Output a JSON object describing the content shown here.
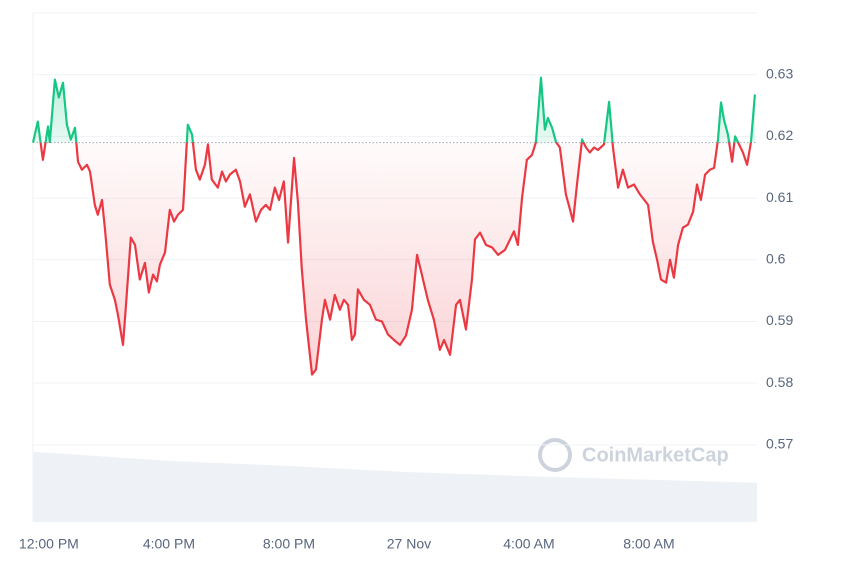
{
  "chart_data": {
    "type": "line",
    "x": [
      -0.53,
      -0.37,
      -0.2,
      -0.03,
      0.03,
      0.2,
      0.33,
      0.47,
      0.6,
      0.73,
      0.87,
      0.97,
      1.1,
      1.27,
      1.37,
      1.53,
      1.63,
      1.77,
      1.87,
      2.03,
      2.2,
      2.3,
      2.47,
      2.57,
      2.73,
      2.87,
      3.03,
      3.2,
      3.33,
      3.47,
      3.6,
      3.7,
      3.87,
      4.03,
      4.17,
      4.3,
      4.47,
      4.63,
      4.77,
      4.9,
      5.03,
      5.2,
      5.3,
      5.43,
      5.63,
      5.77,
      5.9,
      6.03,
      6.23,
      6.37,
      6.53,
      6.7,
      6.9,
      7.07,
      7.23,
      7.37,
      7.53,
      7.67,
      7.83,
      7.97,
      8.17,
      8.3,
      8.43,
      8.57,
      8.77,
      8.9,
      9.1,
      9.2,
      9.37,
      9.53,
      9.7,
      9.83,
      9.97,
      10.1,
      10.2,
      10.3,
      10.5,
      10.7,
      10.9,
      11.1,
      11.3,
      11.5,
      11.7,
      11.9,
      12.1,
      12.27,
      12.43,
      12.63,
      12.83,
      13.03,
      13.17,
      13.37,
      13.57,
      13.7,
      13.9,
      14.1,
      14.2,
      14.37,
      14.57,
      14.77,
      14.97,
      15.2,
      15.37,
      15.5,
      15.63,
      15.77,
      15.93,
      16.1,
      16.23,
      16.4,
      16.53,
      16.63,
      16.77,
      16.9,
      17.03,
      17.23,
      17.37,
      17.47,
      17.6,
      17.77,
      17.9,
      18.03,
      18.17,
      18.3,
      18.5,
      18.67,
      18.8,
      18.97,
      19.13,
      19.3,
      19.5,
      19.7,
      19.97,
      20.13,
      20.27,
      20.4,
      20.57,
      20.7,
      20.83,
      20.97,
      21.13,
      21.3,
      21.47,
      21.6,
      21.73,
      21.87,
      22.03,
      22.17,
      22.3,
      22.4,
      22.5,
      22.63,
      22.77,
      22.87,
      23.0,
      23.13,
      23.27,
      23.4,
      23.53
    ],
    "values": [
      0.619,
      0.6224,
      0.6162,
      0.6216,
      0.6191,
      0.6292,
      0.6263,
      0.6287,
      0.6219,
      0.6195,
      0.6214,
      0.6159,
      0.6146,
      0.6154,
      0.6143,
      0.6089,
      0.6073,
      0.6097,
      0.6049,
      0.596,
      0.5935,
      0.5911,
      0.5862,
      0.5927,
      0.6036,
      0.6024,
      0.5968,
      0.5995,
      0.5947,
      0.5976,
      0.5965,
      0.5992,
      0.6012,
      0.6081,
      0.6062,
      0.6073,
      0.6081,
      0.6219,
      0.6203,
      0.6146,
      0.613,
      0.6154,
      0.6187,
      0.613,
      0.6117,
      0.6143,
      0.6127,
      0.6138,
      0.6146,
      0.6127,
      0.6086,
      0.6106,
      0.6062,
      0.6081,
      0.6089,
      0.6081,
      0.6117,
      0.6097,
      0.6127,
      0.6028,
      0.6165,
      0.6093,
      0.5984,
      0.5903,
      0.5814,
      0.5822,
      0.5903,
      0.5935,
      0.5903,
      0.5943,
      0.5919,
      0.5935,
      0.5927,
      0.587,
      0.5879,
      0.5952,
      0.5935,
      0.5927,
      0.5903,
      0.59,
      0.5879,
      0.587,
      0.5862,
      0.5877,
      0.5919,
      0.6008,
      0.5976,
      0.5935,
      0.5903,
      0.5854,
      0.587,
      0.5846,
      0.5927,
      0.5935,
      0.5887,
      0.5968,
      0.6033,
      0.6044,
      0.6024,
      0.602,
      0.6008,
      0.6016,
      0.6033,
      0.6046,
      0.6024,
      0.6101,
      0.6162,
      0.617,
      0.619,
      0.6295,
      0.6211,
      0.623,
      0.6214,
      0.6191,
      0.6182,
      0.6106,
      0.6081,
      0.6062,
      0.6122,
      0.6195,
      0.6182,
      0.6174,
      0.6182,
      0.6178,
      0.6187,
      0.6256,
      0.6182,
      0.6117,
      0.6146,
      0.6117,
      0.6122,
      0.6106,
      0.6089,
      0.6029,
      0.6,
      0.5968,
      0.5963,
      0.6,
      0.5971,
      0.6024,
      0.6052,
      0.6057,
      0.6078,
      0.6122,
      0.6097,
      0.6138,
      0.6146,
      0.6149,
      0.6195,
      0.6255,
      0.6227,
      0.6203,
      0.6159,
      0.62,
      0.6187,
      0.6174,
      0.6154,
      0.6191,
      0.6268
    ],
    "baseline": 0.619,
    "colors": {
      "up": "#16c784",
      "down": "#ea3943"
    },
    "xlim": [
      -0.53,
      23.6
    ],
    "xticks": [
      {
        "value": 0,
        "label": "12:00 PM"
      },
      {
        "value": 4,
        "label": "4:00 PM"
      },
      {
        "value": 8,
        "label": "8:00 PM"
      },
      {
        "value": 12,
        "label": "27 Nov"
      },
      {
        "value": 16,
        "label": "4:00 AM"
      },
      {
        "value": 20,
        "label": "8:00 AM"
      }
    ],
    "ylim": [
      0.5575,
      0.64
    ],
    "yticks": [
      0.57,
      0.58,
      0.59,
      0.6,
      0.61,
      0.62,
      0.63
    ],
    "grid": true,
    "volume": {
      "x": [
        -0.53,
        4,
        8,
        12,
        16,
        20,
        23.6
      ],
      "values": [
        13.8,
        12.0,
        11.0,
        9.8,
        9.0,
        8.3,
        7.7
      ],
      "ylim": [
        0,
        100
      ],
      "color": "#eef1f5"
    },
    "watermark": "CoinMarketCap"
  }
}
